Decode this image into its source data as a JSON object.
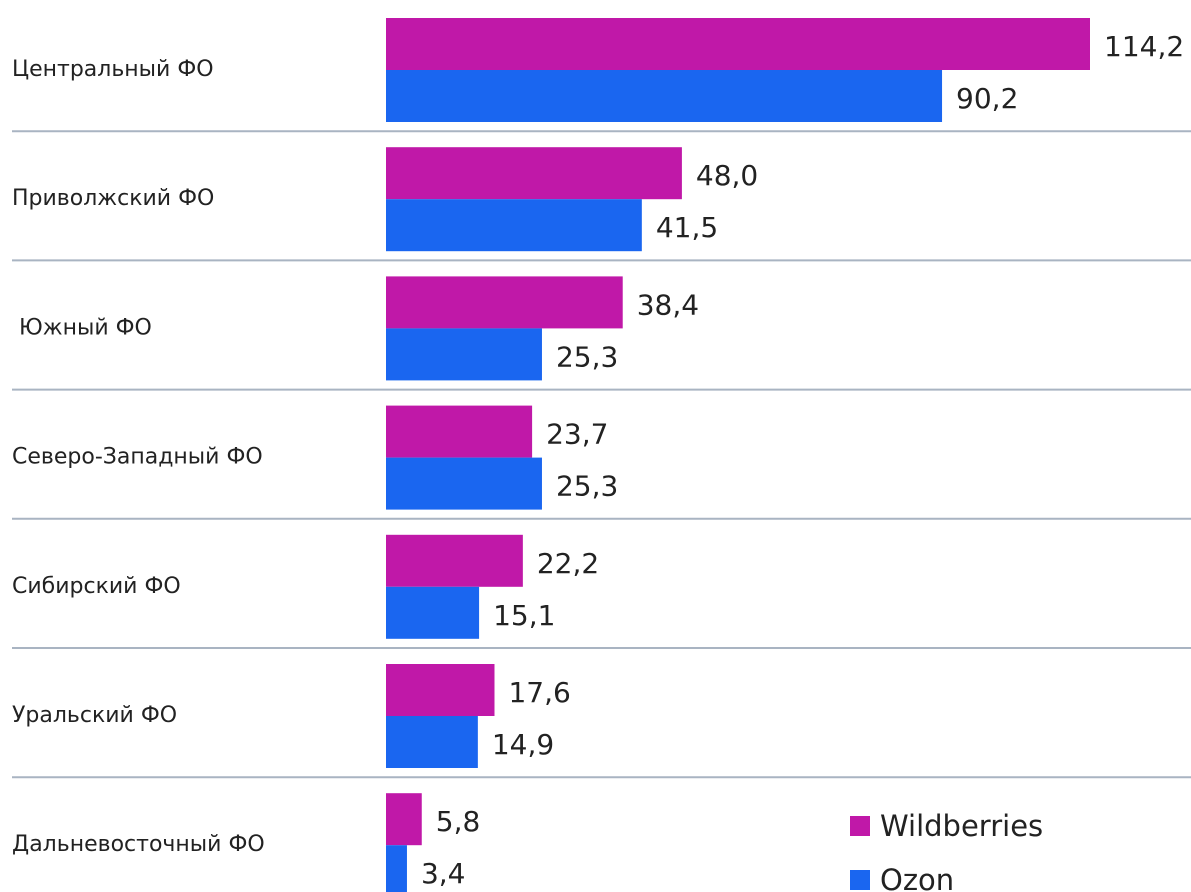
{
  "chart_data": {
    "type": "bar",
    "orientation": "horizontal",
    "categories": [
      "Центральный ФО",
      "Приволжский ФО",
      " Южный ФО",
      "Северо-Западный ФО",
      "Сибирский ФО",
      "Уральский ФО",
      "Дальневосточный ФО"
    ],
    "series": [
      {
        "name": "Wildberries",
        "color": "#c018a8",
        "values": [
          114.2,
          48.0,
          38.4,
          23.7,
          22.2,
          17.6,
          5.8
        ],
        "value_labels": [
          "114,2",
          "48,0",
          "38,4",
          "23,7",
          "22,2",
          "17,6",
          "5,8"
        ]
      },
      {
        "name": "Ozon",
        "color": "#1a66f0",
        "values": [
          90.2,
          41.5,
          25.3,
          25.3,
          15.1,
          14.9,
          3.4
        ],
        "value_labels": [
          "90,2",
          "41,5",
          "25,3",
          "25,3",
          "15,1",
          "14,9",
          "3,4"
        ]
      }
    ],
    "legend": "bottom-right"
  }
}
